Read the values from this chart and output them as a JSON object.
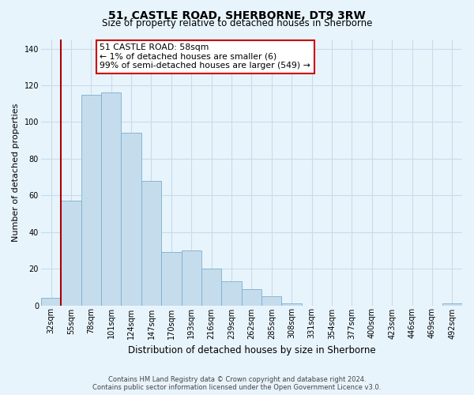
{
  "title": "51, CASTLE ROAD, SHERBORNE, DT9 3RW",
  "subtitle": "Size of property relative to detached houses in Sherborne",
  "xlabel": "Distribution of detached houses by size in Sherborne",
  "ylabel": "Number of detached properties",
  "bar_labels": [
    "32sqm",
    "55sqm",
    "78sqm",
    "101sqm",
    "124sqm",
    "147sqm",
    "170sqm",
    "193sqm",
    "216sqm",
    "239sqm",
    "262sqm",
    "285sqm",
    "308sqm",
    "331sqm",
    "354sqm",
    "377sqm",
    "400sqm",
    "423sqm",
    "446sqm",
    "469sqm",
    "492sqm"
  ],
  "bar_values": [
    4,
    57,
    115,
    116,
    94,
    68,
    29,
    30,
    20,
    13,
    9,
    5,
    1,
    0,
    0,
    0,
    0,
    0,
    0,
    0,
    1
  ],
  "bar_color": "#c5dced",
  "bar_edge_color": "#7ab0cc",
  "vline_color": "#aa0000",
  "vline_x": 0.5,
  "ylim": [
    0,
    145
  ],
  "yticks": [
    0,
    20,
    40,
    60,
    80,
    100,
    120,
    140
  ],
  "annotation_title": "51 CASTLE ROAD: 58sqm",
  "annotation_line1": "← 1% of detached houses are smaller (6)",
  "annotation_line2": "99% of semi-detached houses are larger (549) →",
  "footer_line1": "Contains HM Land Registry data © Crown copyright and database right 2024.",
  "footer_line2": "Contains public sector information licensed under the Open Government Licence v3.0.",
  "bg_color": "#e8f4fc",
  "grid_color": "#c8dcea",
  "title_fontsize": 10,
  "subtitle_fontsize": 8.5,
  "ylabel_fontsize": 8,
  "xlabel_fontsize": 8.5,
  "tick_fontsize": 7,
  "annotation_fontsize": 7.8,
  "footer_fontsize": 6
}
